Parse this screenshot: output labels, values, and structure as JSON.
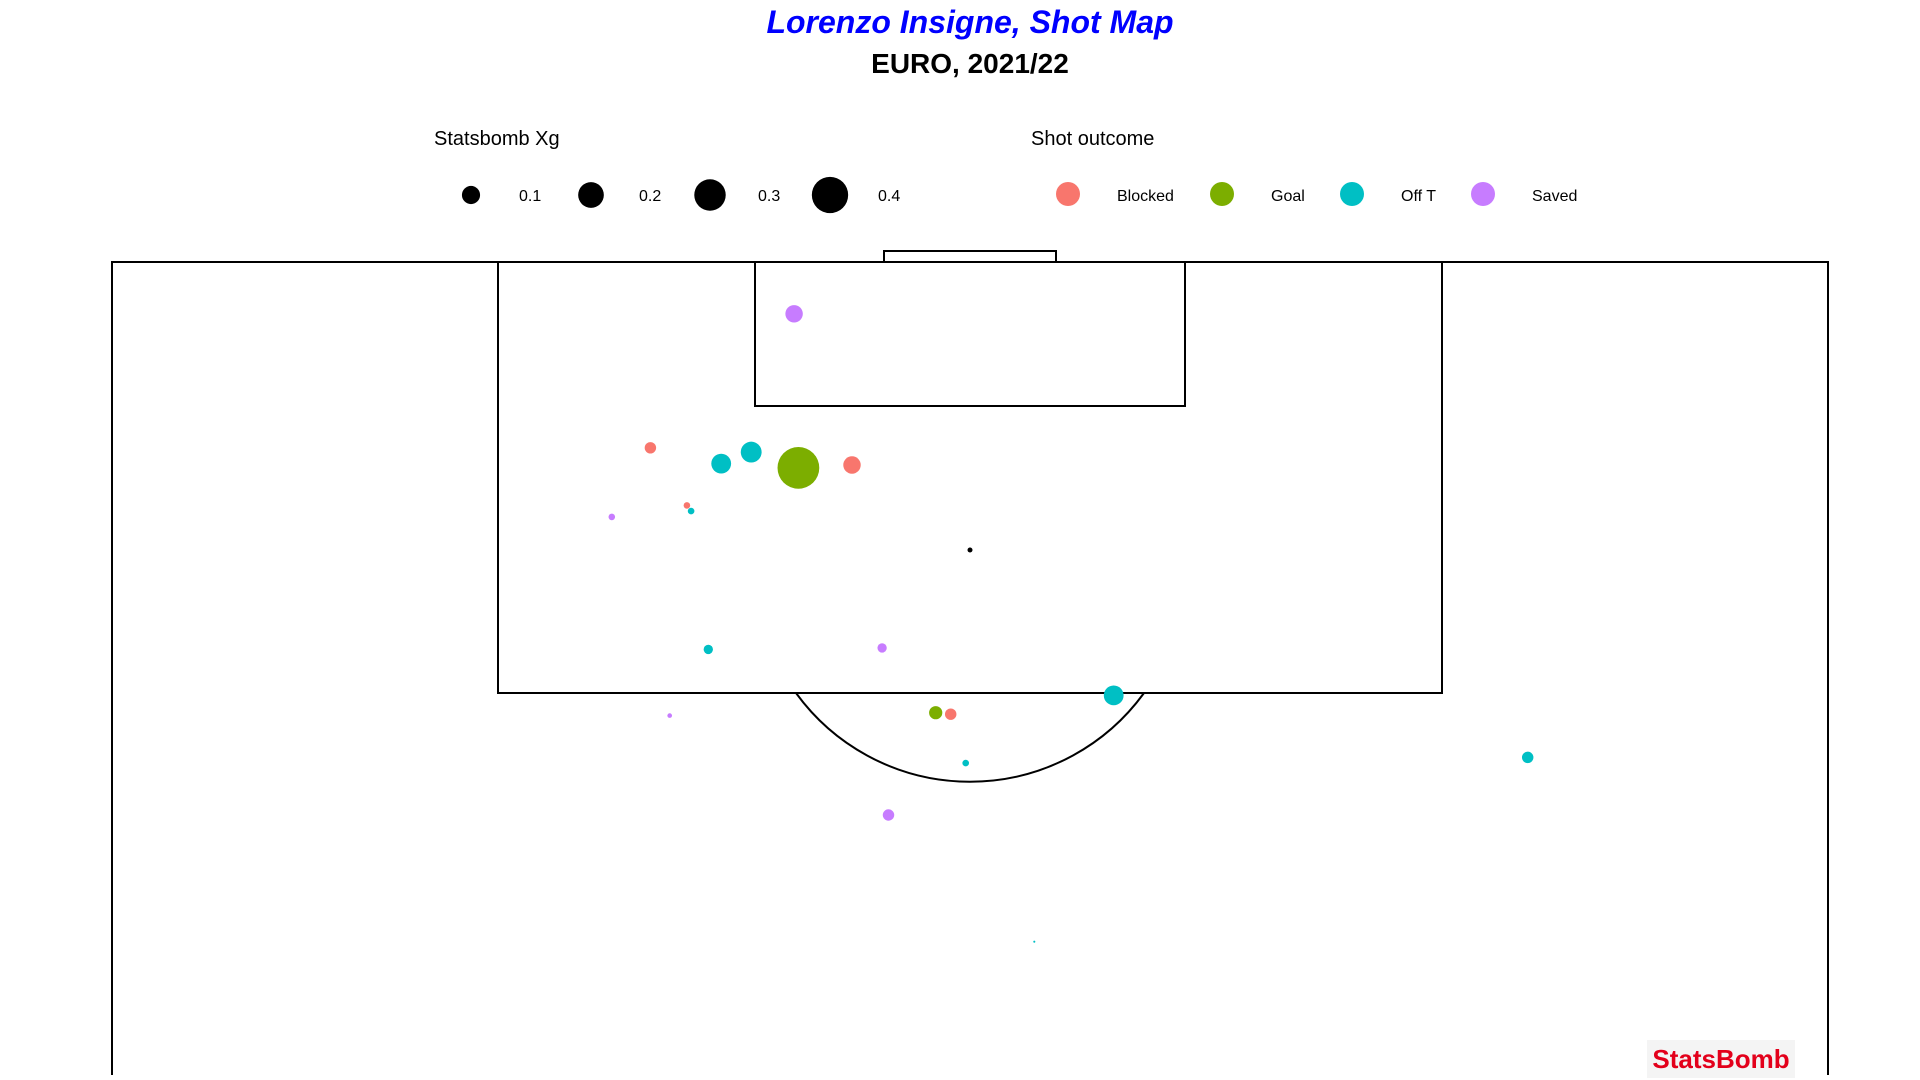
{
  "chart_data": {
    "type": "scatter",
    "title": "Lorenzo Insigne, Shot Map",
    "subtitle": "EURO, 2021/22",
    "title_color": "#0000FF",
    "size_legend": {
      "title": "Statsbomb Xg",
      "values": [
        0.1,
        0.2,
        0.3,
        0.4
      ],
      "labels": [
        "0.1",
        "0.2",
        "0.3",
        "0.4"
      ]
    },
    "color_legend": {
      "title": "Shot outcome",
      "categories": [
        "Blocked",
        "Goal",
        "Off T",
        "Saved"
      ],
      "colors": [
        "#F8766D",
        "#7CAE00",
        "#00BFC4",
        "#C77CFF"
      ]
    },
    "pitch": {
      "view": "attacking-half",
      "length": 60,
      "width": 80,
      "x_range": [
        60,
        120
      ],
      "y_range": [
        0,
        80
      ]
    },
    "shots": [
      {
        "x": 116.4,
        "y": 31.8,
        "xg": 0.07,
        "outcome": "Saved"
      },
      {
        "x": 107.1,
        "y": 25.1,
        "xg": 0.03,
        "outcome": "Blocked"
      },
      {
        "x": 106.8,
        "y": 29.8,
        "xg": 0.1,
        "outcome": "Off T"
      },
      {
        "x": 106.0,
        "y": 28.4,
        "xg": 0.09,
        "outcome": "Off T"
      },
      {
        "x": 105.7,
        "y": 32.0,
        "xg": 0.4,
        "outcome": "Goal"
      },
      {
        "x": 105.9,
        "y": 34.5,
        "xg": 0.07,
        "outcome": "Blocked"
      },
      {
        "x": 103.1,
        "y": 26.8,
        "xg": 0.01,
        "outcome": "Blocked"
      },
      {
        "x": 102.7,
        "y": 27.0,
        "xg": 0.01,
        "outcome": "Off T"
      },
      {
        "x": 102.3,
        "y": 23.3,
        "xg": 0.01,
        "outcome": "Saved"
      },
      {
        "x": 93.1,
        "y": 27.8,
        "xg": 0.02,
        "outcome": "Off T"
      },
      {
        "x": 93.2,
        "y": 35.9,
        "xg": 0.02,
        "outcome": "Saved"
      },
      {
        "x": 88.5,
        "y": 26.0,
        "xg": 0.005,
        "outcome": "Saved"
      },
      {
        "x": 88.7,
        "y": 38.4,
        "xg": 0.04,
        "outcome": "Goal"
      },
      {
        "x": 88.6,
        "y": 39.1,
        "xg": 0.03,
        "outcome": "Blocked"
      },
      {
        "x": 89.9,
        "y": 46.7,
        "xg": 0.09,
        "outcome": "Off T"
      },
      {
        "x": 85.2,
        "y": 39.8,
        "xg": 0.01,
        "outcome": "Off T"
      },
      {
        "x": 85.6,
        "y": 66.0,
        "xg": 0.03,
        "outcome": "Off T"
      },
      {
        "x": 81.6,
        "y": 36.2,
        "xg": 0.03,
        "outcome": "Saved"
      },
      {
        "x": 72.8,
        "y": 43.0,
        "xg": 0.001,
        "outcome": "Off T"
      }
    ]
  },
  "brand": {
    "name": "StatsBomb",
    "color": "#E3001B"
  }
}
